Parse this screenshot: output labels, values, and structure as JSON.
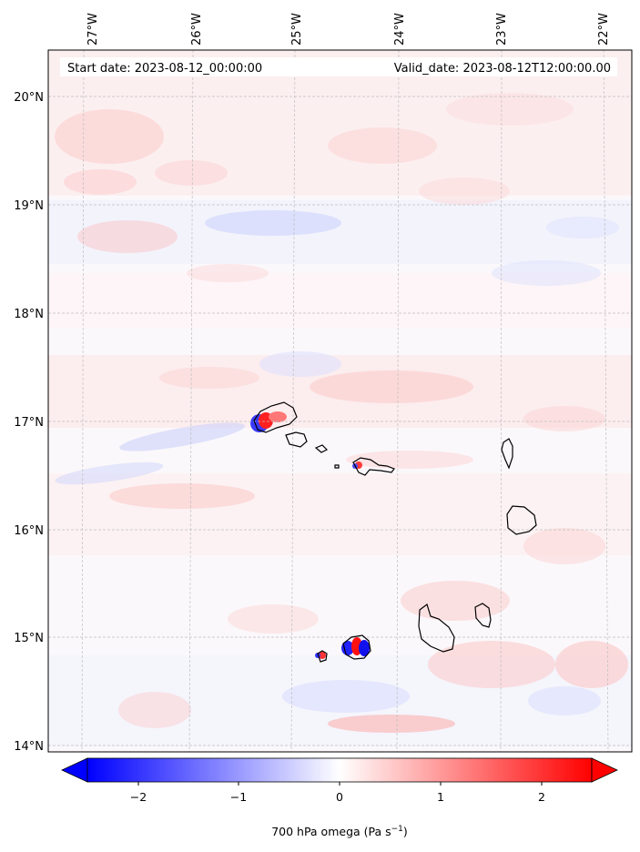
{
  "map": {
    "start_date_label": "Start date: 2023-08-12_00:00:00",
    "valid_date_label": "Valid_date: 2023-08-12T12:00:00.00",
    "lon_ticks": [
      "27°W",
      "26°W",
      "25°W",
      "24°W",
      "23°W",
      "22°W"
    ],
    "lat_ticks": [
      "20°N",
      "19°N",
      "18°N",
      "17°N",
      "16°N",
      "15°N",
      "14°N"
    ]
  },
  "colorbar": {
    "ticks": [
      "−2",
      "−1",
      "0",
      "1",
      "2"
    ],
    "title_main": "700 hPa omega (Pa s",
    "title_sup": "−1",
    "title_end": ")",
    "min_color": "#0000ff",
    "mid_color": "#ffffff",
    "max_color": "#ff0000"
  }
}
